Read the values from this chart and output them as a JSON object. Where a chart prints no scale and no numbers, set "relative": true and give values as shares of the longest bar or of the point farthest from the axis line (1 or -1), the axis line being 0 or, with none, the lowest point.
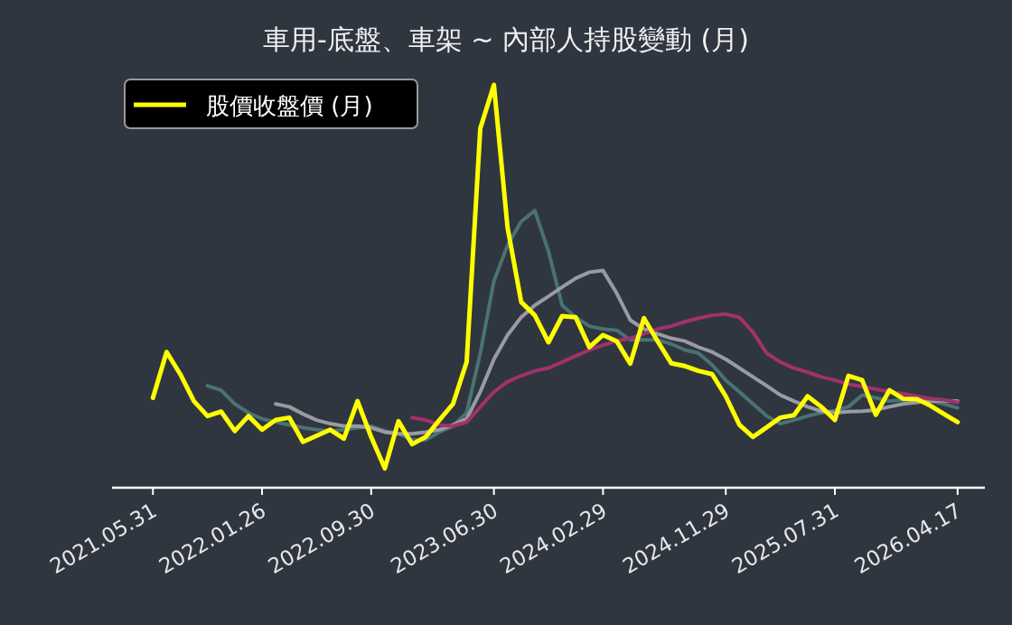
{
  "chart_data": {
    "type": "line",
    "title": "車用-底盤、車架 ~ 內部人持股變動 (月)",
    "relative": true,
    "legend": "top left",
    "grid": false,
    "line_style": "solid",
    "xlim": [
      "2021-02",
      "2026-06"
    ],
    "xticks": [
      {
        "value": "2021-05",
        "label": "2021.05.31"
      },
      {
        "value": "2022-01",
        "label": "2022.01.26"
      },
      {
        "value": "2022-09",
        "label": "2022.09.30"
      },
      {
        "value": "2023-06",
        "label": "2023.06.30"
      },
      {
        "value": "2024-02",
        "label": "2024.02.29"
      },
      {
        "value": "2024-11",
        "label": "2024.11.29"
      },
      {
        "value": "2025-07",
        "label": "2025.07.31"
      },
      {
        "value": "2026-04",
        "label": "2026.04.17"
      }
    ],
    "series": [
      {
        "color": "#4a7272",
        "x": [
          "2021-09",
          "2021-10",
          "2021-11",
          "2021-12",
          "2022-01",
          "2022-02",
          "2022-03",
          "2022-04",
          "2022-05",
          "2022-06",
          "2022-07",
          "2022-08",
          "2022-09",
          "2022-10",
          "2022-11",
          "2022-12",
          "2023-01",
          "2023-02",
          "2023-03",
          "2023-04",
          "2023-05",
          "2023-06",
          "2023-07",
          "2023-08",
          "2023-09",
          "2023-10",
          "2023-11",
          "2023-12",
          "2024-01",
          "2024-02",
          "2024-03",
          "2024-04",
          "2024-05",
          "2024-06",
          "2024-07",
          "2024-08",
          "2024-09",
          "2024-10",
          "2024-11",
          "2024-12",
          "2025-01",
          "2025-02",
          "2025-03",
          "2025-04",
          "2025-05",
          "2025-06",
          "2025-07",
          "2025-08",
          "2025-09",
          "2025-10",
          "2025-11",
          "2025-12",
          "2026-01",
          "2026-02",
          "2026-03",
          "2026-04"
        ],
        "values": [
          0.253,
          0.242,
          0.208,
          0.186,
          0.171,
          0.163,
          0.156,
          0.149,
          0.144,
          0.141,
          0.144,
          0.149,
          0.153,
          0.141,
          0.134,
          0.119,
          0.119,
          0.138,
          0.153,
          0.186,
          0.334,
          0.513,
          0.602,
          0.661,
          0.688,
          0.587,
          0.453,
          0.423,
          0.401,
          0.394,
          0.391,
          0.367,
          0.367,
          0.367,
          0.357,
          0.342,
          0.334,
          0.305,
          0.267,
          0.238,
          0.208,
          0.178,
          0.159,
          0.168,
          0.178,
          0.186,
          0.192,
          0.201,
          0.23,
          0.223,
          0.215,
          0.218,
          0.218,
          0.215,
          0.208,
          0.198
        ]
      },
      {
        "color": "#9a9ba2",
        "x": [
          "2022-02",
          "2022-03",
          "2022-04",
          "2022-05",
          "2022-06",
          "2022-07",
          "2022-08",
          "2022-09",
          "2022-10",
          "2022-11",
          "2022-12",
          "2023-01",
          "2023-02",
          "2023-03",
          "2023-04",
          "2023-05",
          "2023-06",
          "2023-07",
          "2023-08",
          "2023-09",
          "2023-10",
          "2023-11",
          "2023-12",
          "2024-01",
          "2024-02",
          "2024-03",
          "2024-04",
          "2024-05",
          "2024-06",
          "2024-07",
          "2024-08",
          "2024-09",
          "2024-10",
          "2024-11",
          "2024-12",
          "2025-01",
          "2025-02",
          "2025-03",
          "2025-04",
          "2025-05",
          "2025-06",
          "2025-07",
          "2025-08",
          "2025-09",
          "2025-10",
          "2025-11",
          "2025-12",
          "2026-01",
          "2026-02",
          "2026-03",
          "2026-04"
        ],
        "values": [
          0.208,
          0.201,
          0.183,
          0.168,
          0.159,
          0.153,
          0.153,
          0.149,
          0.138,
          0.134,
          0.134,
          0.138,
          0.144,
          0.156,
          0.171,
          0.238,
          0.319,
          0.379,
          0.423,
          0.453,
          0.475,
          0.498,
          0.52,
          0.535,
          0.539,
          0.483,
          0.416,
          0.394,
          0.382,
          0.371,
          0.364,
          0.349,
          0.337,
          0.319,
          0.297,
          0.275,
          0.253,
          0.23,
          0.215,
          0.201,
          0.19,
          0.186,
          0.189,
          0.19,
          0.193,
          0.201,
          0.208,
          0.212,
          0.215,
          0.215,
          0.215
        ]
      },
      {
        "color": "#a3306c",
        "x": [
          "2022-12",
          "2023-01",
          "2023-02",
          "2023-03",
          "2023-04",
          "2023-05",
          "2023-06",
          "2023-07",
          "2023-08",
          "2023-09",
          "2023-10",
          "2023-11",
          "2023-12",
          "2024-01",
          "2024-02",
          "2024-03",
          "2024-04",
          "2024-05",
          "2024-06",
          "2024-07",
          "2024-08",
          "2024-09",
          "2024-10",
          "2024-11",
          "2024-12",
          "2025-01",
          "2025-02",
          "2025-03",
          "2025-04",
          "2025-05",
          "2025-06",
          "2025-07",
          "2025-08",
          "2025-09",
          "2025-10",
          "2025-11",
          "2025-12",
          "2026-01",
          "2026-02",
          "2026-03",
          "2026-04"
        ],
        "values": [
          0.174,
          0.168,
          0.156,
          0.153,
          0.163,
          0.201,
          0.238,
          0.263,
          0.278,
          0.29,
          0.297,
          0.312,
          0.327,
          0.342,
          0.354,
          0.364,
          0.371,
          0.382,
          0.394,
          0.401,
          0.412,
          0.421,
          0.428,
          0.431,
          0.423,
          0.386,
          0.334,
          0.312,
          0.297,
          0.287,
          0.275,
          0.267,
          0.257,
          0.251,
          0.245,
          0.238,
          0.233,
          0.227,
          0.221,
          0.218,
          0.212
        ]
      },
      {
        "name": "股價收盤價 (月)",
        "color": "#ffff00",
        "x": [
          "2021-05",
          "2021-06",
          "2021-07",
          "2021-08",
          "2021-09",
          "2021-10",
          "2021-11",
          "2021-12",
          "2022-01",
          "2022-02",
          "2022-03",
          "2022-04",
          "2022-05",
          "2022-06",
          "2022-07",
          "2022-08",
          "2022-09",
          "2022-10",
          "2022-11",
          "2022-12",
          "2023-01",
          "2023-02",
          "2023-03",
          "2023-04",
          "2023-05",
          "2023-06",
          "2023-07",
          "2023-08",
          "2023-09",
          "2023-10",
          "2023-11",
          "2023-12",
          "2024-01",
          "2024-02",
          "2024-03",
          "2024-04",
          "2024-05",
          "2024-06",
          "2024-07",
          "2024-08",
          "2024-09",
          "2024-10",
          "2024-11",
          "2024-12",
          "2025-01",
          "2025-02",
          "2025-03",
          "2025-04",
          "2025-05",
          "2025-06",
          "2025-07",
          "2025-08",
          "2025-09",
          "2025-10",
          "2025-11",
          "2025-12",
          "2026-01",
          "2026-02",
          "2026-03",
          "2026-04"
        ],
        "values": [
          0.223,
          0.337,
          0.282,
          0.215,
          0.178,
          0.189,
          0.141,
          0.178,
          0.144,
          0.168,
          0.174,
          0.114,
          0.129,
          0.144,
          0.122,
          0.215,
          0.126,
          0.048,
          0.165,
          0.108,
          0.126,
          0.168,
          0.208,
          0.312,
          0.892,
          1,
          0.646,
          0.461,
          0.428,
          0.361,
          0.426,
          0.423,
          0.349,
          0.379,
          0.364,
          0.308,
          0.421,
          0.364,
          0.309,
          0.302,
          0.29,
          0.282,
          0.227,
          0.156,
          0.126,
          0.15,
          0.174,
          0.18,
          0.227,
          0.201,
          0.168,
          0.278,
          0.267,
          0.181,
          0.242,
          0.221,
          0.22,
          0.204,
          0.183,
          0.163
        ]
      }
    ]
  }
}
